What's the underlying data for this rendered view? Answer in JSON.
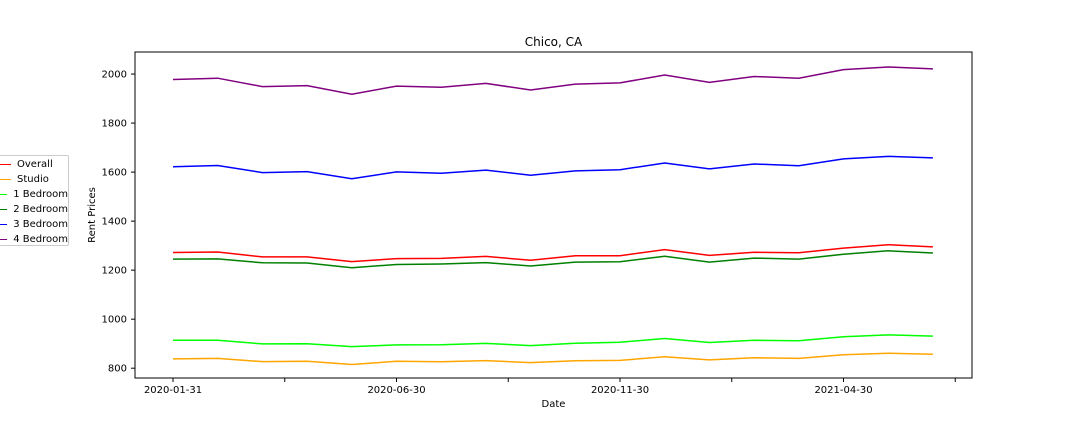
{
  "chart_data": {
    "type": "line",
    "title": "Chico, CA",
    "xlabel": "Date",
    "ylabel": "Rent Prices",
    "x": [
      "2020-01-31",
      "2020-02-29",
      "2020-03-31",
      "2020-04-30",
      "2020-05-31",
      "2020-06-30",
      "2020-07-31",
      "2020-08-31",
      "2020-09-30",
      "2020-10-31",
      "2020-11-30",
      "2020-12-31",
      "2021-01-31",
      "2021-02-28",
      "2021-03-31",
      "2021-04-30",
      "2021-05-31",
      "2021-06-30"
    ],
    "x_tick_labels": [
      "2020-01-31",
      "",
      "2020-06-30",
      "",
      "2020-11-30",
      "",
      "2021-04-30",
      ""
    ],
    "y_ticks": [
      800,
      1000,
      1200,
      1400,
      1600,
      1800,
      2000
    ],
    "ylim": [
      760,
      2090
    ],
    "grid": false,
    "legend_position": "left",
    "series": [
      {
        "name": "Overall",
        "color": "#ff0000",
        "values": [
          1272,
          1274,
          1254,
          1254,
          1235,
          1247,
          1248,
          1256,
          1240,
          1259,
          1259,
          1284,
          1260,
          1273,
          1271,
          1290,
          1304,
          1295
        ]
      },
      {
        "name": "Studio",
        "color": "#ffa500",
        "values": [
          838,
          840,
          827,
          828,
          815,
          828,
          826,
          831,
          823,
          830,
          832,
          847,
          834,
          843,
          840,
          855,
          861,
          857
        ]
      },
      {
        "name": "1 Bedroom",
        "color": "#00ff00",
        "values": [
          914,
          914,
          899,
          900,
          888,
          895,
          896,
          901,
          892,
          902,
          906,
          921,
          905,
          914,
          912,
          928,
          936,
          931
        ]
      },
      {
        "name": "2 Bedroom",
        "color": "#008000",
        "values": [
          1245,
          1246,
          1230,
          1229,
          1210,
          1223,
          1225,
          1231,
          1217,
          1233,
          1234,
          1257,
          1233,
          1249,
          1245,
          1265,
          1279,
          1270
        ]
      },
      {
        "name": "3 Bedroom",
        "color": "#0000ff",
        "values": [
          1622,
          1627,
          1598,
          1602,
          1573,
          1601,
          1595,
          1608,
          1587,
          1605,
          1610,
          1637,
          1613,
          1633,
          1626,
          1654,
          1664,
          1658
        ]
      },
      {
        "name": "4 Bedroom",
        "color": "#800080",
        "values": [
          1978,
          1983,
          1949,
          1953,
          1918,
          1951,
          1946,
          1962,
          1935,
          1959,
          1964,
          1996,
          1966,
          1990,
          1983,
          2018,
          2029,
          2021
        ]
      }
    ]
  }
}
